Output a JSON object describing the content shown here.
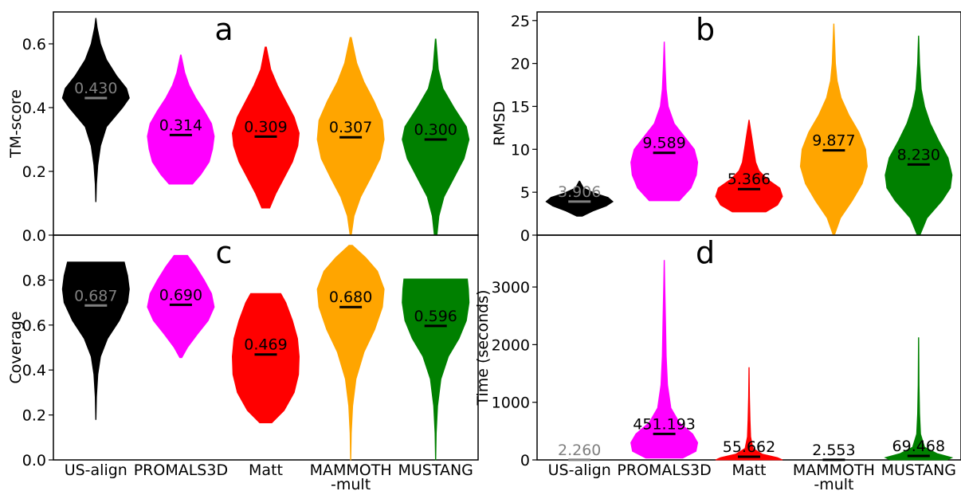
{
  "chart_data": [
    {
      "type": "violin",
      "panel_letter": "a",
      "ylabel": "TM-score",
      "ylim": [
        0,
        0.7
      ],
      "yticks": [
        0.0,
        0.2,
        0.4,
        0.6
      ],
      "ytick_labels": [
        "0.0",
        "0.2",
        "0.4",
        "0.6"
      ],
      "categories": [
        "US-align",
        "PROMALS3D",
        "Matt",
        "MAMMOTH-mult",
        "MUSTANG"
      ],
      "series": [
        {
          "category": "US-align",
          "color": "#000000",
          "mean": 0.43,
          "mean_label": "0.430",
          "min": 0.105,
          "max": 0.68,
          "profile": [
            [
              0.105,
              0.005
            ],
            [
              0.16,
              0.02
            ],
            [
              0.22,
              0.06
            ],
            [
              0.28,
              0.14
            ],
            [
              0.34,
              0.32
            ],
            [
              0.4,
              0.8
            ],
            [
              0.43,
              1.0
            ],
            [
              0.46,
              0.92
            ],
            [
              0.5,
              0.62
            ],
            [
              0.55,
              0.32
            ],
            [
              0.6,
              0.14
            ],
            [
              0.65,
              0.04
            ],
            [
              0.68,
              0.005
            ]
          ]
        },
        {
          "category": "PROMALS3D",
          "color": "#ff00ff",
          "mean": 0.314,
          "mean_label": "0.314",
          "min": 0.16,
          "max": 0.565,
          "profile": [
            [
              0.16,
              0.35
            ],
            [
              0.19,
              0.6
            ],
            [
              0.23,
              0.85
            ],
            [
              0.27,
              0.95
            ],
            [
              0.31,
              1.0
            ],
            [
              0.35,
              0.92
            ],
            [
              0.39,
              0.7
            ],
            [
              0.43,
              0.45
            ],
            [
              0.47,
              0.25
            ],
            [
              0.51,
              0.12
            ],
            [
              0.565,
              0.01
            ]
          ]
        },
        {
          "category": "Matt",
          "color": "#ff0000",
          "mean": 0.309,
          "mean_label": "0.309",
          "min": 0.085,
          "max": 0.59,
          "profile": [
            [
              0.085,
              0.12
            ],
            [
              0.13,
              0.3
            ],
            [
              0.18,
              0.55
            ],
            [
              0.23,
              0.8
            ],
            [
              0.28,
              0.96
            ],
            [
              0.32,
              1.0
            ],
            [
              0.37,
              0.85
            ],
            [
              0.42,
              0.6
            ],
            [
              0.47,
              0.35
            ],
            [
              0.52,
              0.15
            ],
            [
              0.59,
              0.02
            ]
          ]
        },
        {
          "category": "MAMMOTH-mult",
          "color": "#ffa500",
          "mean": 0.307,
          "mean_label": "0.307",
          "min": 0.0,
          "max": 0.62,
          "profile": [
            [
              0.0,
              0.02
            ],
            [
              0.06,
              0.1
            ],
            [
              0.12,
              0.3
            ],
            [
              0.18,
              0.6
            ],
            [
              0.24,
              0.88
            ],
            [
              0.3,
              1.0
            ],
            [
              0.36,
              0.95
            ],
            [
              0.42,
              0.7
            ],
            [
              0.48,
              0.4
            ],
            [
              0.54,
              0.18
            ],
            [
              0.62,
              0.02
            ]
          ]
        },
        {
          "category": "MUSTANG",
          "color": "#008000",
          "mean": 0.3,
          "mean_label": "0.300",
          "min": 0.0,
          "max": 0.615,
          "profile": [
            [
              0.0,
              0.04
            ],
            [
              0.06,
              0.1
            ],
            [
              0.12,
              0.25
            ],
            [
              0.18,
              0.55
            ],
            [
              0.24,
              0.85
            ],
            [
              0.3,
              1.0
            ],
            [
              0.34,
              0.92
            ],
            [
              0.4,
              0.55
            ],
            [
              0.46,
              0.22
            ],
            [
              0.52,
              0.08
            ],
            [
              0.615,
              0.01
            ]
          ]
        }
      ]
    },
    {
      "type": "violin",
      "panel_letter": "b",
      "ylabel": "RMSD",
      "ylim": [
        0,
        26
      ],
      "yticks": [
        0,
        5,
        10,
        15,
        20,
        25
      ],
      "ytick_labels": [
        "0",
        "5",
        "10",
        "15",
        "20",
        "25"
      ],
      "categories": [
        "US-align",
        "PROMALS3D",
        "Matt",
        "MAMMOTH-mult",
        "MUSTANG"
      ],
      "series": [
        {
          "category": "US-align",
          "color": "#000000",
          "mean": 3.906,
          "mean_label": "3.906",
          "min": 2.2,
          "max": 6.3,
          "profile": [
            [
              2.2,
              0.08
            ],
            [
              2.8,
              0.4
            ],
            [
              3.4,
              0.8
            ],
            [
              3.9,
              1.0
            ],
            [
              4.4,
              0.85
            ],
            [
              4.9,
              0.45
            ],
            [
              5.5,
              0.12
            ],
            [
              6.3,
              0.01
            ]
          ]
        },
        {
          "category": "PROMALS3D",
          "color": "#ff00ff",
          "mean": 9.589,
          "mean_label": "9.589",
          "min": 4.0,
          "max": 22.5,
          "profile": [
            [
              4.0,
              0.45
            ],
            [
              5.5,
              0.8
            ],
            [
              7.0,
              0.96
            ],
            [
              8.5,
              1.0
            ],
            [
              10.0,
              0.9
            ],
            [
              11.5,
              0.6
            ],
            [
              13.0,
              0.3
            ],
            [
              15.0,
              0.12
            ],
            [
              17.0,
              0.06
            ],
            [
              19.5,
              0.03
            ],
            [
              22.5,
              0.005
            ]
          ]
        },
        {
          "category": "Matt",
          "color": "#ff0000",
          "mean": 5.366,
          "mean_label": "5.366",
          "min": 2.7,
          "max": 13.4,
          "profile": [
            [
              2.7,
              0.5
            ],
            [
              3.5,
              0.85
            ],
            [
              4.5,
              1.0
            ],
            [
              5.5,
              0.92
            ],
            [
              6.5,
              0.55
            ],
            [
              7.5,
              0.3
            ],
            [
              8.5,
              0.2
            ],
            [
              9.5,
              0.16
            ],
            [
              10.5,
              0.12
            ],
            [
              11.5,
              0.08
            ],
            [
              12.5,
              0.04
            ],
            [
              13.4,
              0.005
            ]
          ]
        },
        {
          "category": "MAMMOTH-mult",
          "color": "#ffa500",
          "mean": 9.877,
          "mean_label": "9.877",
          "min": 0.0,
          "max": 24.6,
          "profile": [
            [
              0.0,
              0.02
            ],
            [
              2.0,
              0.2
            ],
            [
              4.0,
              0.55
            ],
            [
              6.0,
              0.85
            ],
            [
              8.0,
              1.0
            ],
            [
              10.0,
              0.95
            ],
            [
              12.0,
              0.75
            ],
            [
              14.0,
              0.45
            ],
            [
              16.0,
              0.22
            ],
            [
              18.0,
              0.1
            ],
            [
              20.0,
              0.05
            ],
            [
              22.0,
              0.03
            ],
            [
              24.6,
              0.005
            ]
          ]
        },
        {
          "category": "MUSTANG",
          "color": "#008000",
          "mean": 8.23,
          "mean_label": "8.230",
          "min": 0.0,
          "max": 23.2,
          "profile": [
            [
              0.0,
              0.04
            ],
            [
              2.0,
              0.25
            ],
            [
              4.0,
              0.7
            ],
            [
              5.5,
              0.95
            ],
            [
              7.0,
              1.0
            ],
            [
              9.0,
              0.88
            ],
            [
              11.0,
              0.6
            ],
            [
              13.0,
              0.35
            ],
            [
              15.0,
              0.18
            ],
            [
              17.0,
              0.08
            ],
            [
              20.0,
              0.03
            ],
            [
              23.2,
              0.005
            ]
          ]
        }
      ]
    },
    {
      "type": "violin",
      "panel_letter": "c",
      "ylabel": "Coverage",
      "ylim": [
        0,
        1.0
      ],
      "yticks": [
        0.0,
        0.2,
        0.4,
        0.6,
        0.8
      ],
      "ytick_labels": [
        "0.0",
        "0.2",
        "0.4",
        "0.6",
        "0.8"
      ],
      "categories": [
        "US-align",
        "PROMALS3D",
        "Matt",
        "MAMMOTH-mult",
        "MUSTANG"
      ],
      "series": [
        {
          "category": "US-align",
          "color": "#000000",
          "mean": 0.687,
          "mean_label": "0.687",
          "min": 0.18,
          "max": 0.88,
          "profile": [
            [
              0.18,
              0.005
            ],
            [
              0.28,
              0.02
            ],
            [
              0.38,
              0.06
            ],
            [
              0.46,
              0.14
            ],
            [
              0.54,
              0.35
            ],
            [
              0.62,
              0.7
            ],
            [
              0.7,
              0.95
            ],
            [
              0.76,
              1.0
            ],
            [
              0.82,
              0.95
            ],
            [
              0.88,
              0.85
            ]
          ]
        },
        {
          "category": "PROMALS3D",
          "color": "#ff00ff",
          "mean": 0.69,
          "mean_label": "0.690",
          "min": 0.455,
          "max": 0.91,
          "profile": [
            [
              0.455,
              0.03
            ],
            [
              0.5,
              0.2
            ],
            [
              0.56,
              0.5
            ],
            [
              0.62,
              0.82
            ],
            [
              0.68,
              1.0
            ],
            [
              0.74,
              0.92
            ],
            [
              0.8,
              0.7
            ],
            [
              0.86,
              0.45
            ],
            [
              0.91,
              0.2
            ]
          ]
        },
        {
          "category": "Matt",
          "color": "#ff0000",
          "mean": 0.469,
          "mean_label": "0.469",
          "min": 0.165,
          "max": 0.74,
          "profile": [
            [
              0.165,
              0.18
            ],
            [
              0.22,
              0.55
            ],
            [
              0.3,
              0.85
            ],
            [
              0.38,
              0.98
            ],
            [
              0.46,
              1.0
            ],
            [
              0.54,
              0.95
            ],
            [
              0.62,
              0.8
            ],
            [
              0.7,
              0.6
            ],
            [
              0.74,
              0.45
            ]
          ]
        },
        {
          "category": "MAMMOTH-mult",
          "color": "#ffa500",
          "mean": 0.68,
          "mean_label": "0.680",
          "min": 0.0,
          "max": 0.955,
          "profile": [
            [
              0.0,
              0.005
            ],
            [
              0.12,
              0.02
            ],
            [
              0.24,
              0.06
            ],
            [
              0.36,
              0.16
            ],
            [
              0.48,
              0.4
            ],
            [
              0.58,
              0.72
            ],
            [
              0.68,
              0.95
            ],
            [
              0.76,
              1.0
            ],
            [
              0.84,
              0.8
            ],
            [
              0.9,
              0.45
            ],
            [
              0.955,
              0.05
            ]
          ]
        },
        {
          "category": "MUSTANG",
          "color": "#008000",
          "mean": 0.596,
          "mean_label": "0.596",
          "min": 0.0,
          "max": 0.805,
          "profile": [
            [
              0.0,
              0.005
            ],
            [
              0.12,
              0.02
            ],
            [
              0.24,
              0.06
            ],
            [
              0.36,
              0.16
            ],
            [
              0.46,
              0.38
            ],
            [
              0.54,
              0.7
            ],
            [
              0.62,
              0.92
            ],
            [
              0.7,
              1.0
            ],
            [
              0.76,
              0.98
            ],
            [
              0.805,
              0.95
            ]
          ]
        }
      ]
    },
    {
      "type": "violin",
      "panel_letter": "d",
      "ylabel": "Time (seconds)",
      "ylim": [
        0,
        3900
      ],
      "yticks": [
        0,
        1000,
        2000,
        3000
      ],
      "ytick_labels": [
        "0",
        "1000",
        "2000",
        "3000"
      ],
      "categories": [
        "US-align",
        "PROMALS3D",
        "Matt",
        "MAMMOTH-mult",
        "MUSTANG"
      ],
      "series": [
        {
          "category": "US-align",
          "color": "#000000",
          "mean": 2.26,
          "mean_label": "2.260",
          "min": 0.0,
          "max": 10,
          "profile": [
            [
              0,
              0.3
            ],
            [
              5,
              0.2
            ],
            [
              10,
              0.02
            ]
          ]
        },
        {
          "category": "PROMALS3D",
          "color": "#ff00ff",
          "mean": 451.193,
          "mean_label": "451.193",
          "min": 30,
          "max": 3460,
          "profile": [
            [
              30,
              0.55
            ],
            [
              150,
              0.95
            ],
            [
              300,
              1.0
            ],
            [
              450,
              0.85
            ],
            [
              650,
              0.45
            ],
            [
              900,
              0.2
            ],
            [
              1300,
              0.1
            ],
            [
              1800,
              0.06
            ],
            [
              2400,
              0.04
            ],
            [
              3000,
              0.02
            ],
            [
              3460,
              0.005
            ]
          ]
        },
        {
          "category": "Matt",
          "color": "#ff0000",
          "mean": 55.662,
          "mean_label": "55.662",
          "min": 0,
          "max": 1600,
          "profile": [
            [
              0,
              1.0
            ],
            [
              40,
              0.85
            ],
            [
              100,
              0.4
            ],
            [
              200,
              0.12
            ],
            [
              400,
              0.05
            ],
            [
              700,
              0.03
            ],
            [
              1100,
              0.015
            ],
            [
              1600,
              0.005
            ]
          ]
        },
        {
          "category": "MAMMOTH-mult",
          "color": "#ffa500",
          "mean": 2.553,
          "mean_label": "2.553",
          "min": 0.0,
          "max": 10,
          "profile": [
            [
              0,
              0.3
            ],
            [
              5,
              0.2
            ],
            [
              10,
              0.02
            ]
          ]
        },
        {
          "category": "MUSTANG",
          "color": "#008000",
          "mean": 69.468,
          "mean_label": "69.468",
          "min": 0,
          "max": 2120,
          "profile": [
            [
              0,
              0.85
            ],
            [
              40,
              1.0
            ],
            [
              110,
              0.55
            ],
            [
              220,
              0.18
            ],
            [
              450,
              0.06
            ],
            [
              800,
              0.03
            ],
            [
              1300,
              0.015
            ],
            [
              2120,
              0.005
            ]
          ]
        }
      ]
    }
  ],
  "x_tick_labels": [
    "US-align",
    "PROMALS3D",
    "Matt",
    "MAMMOTH",
    "MUSTANG"
  ],
  "x_tick_sublabels": [
    "",
    "",
    "",
    "-mult",
    ""
  ],
  "first_label_color": "#808080",
  "mean_label_color": "#000000"
}
